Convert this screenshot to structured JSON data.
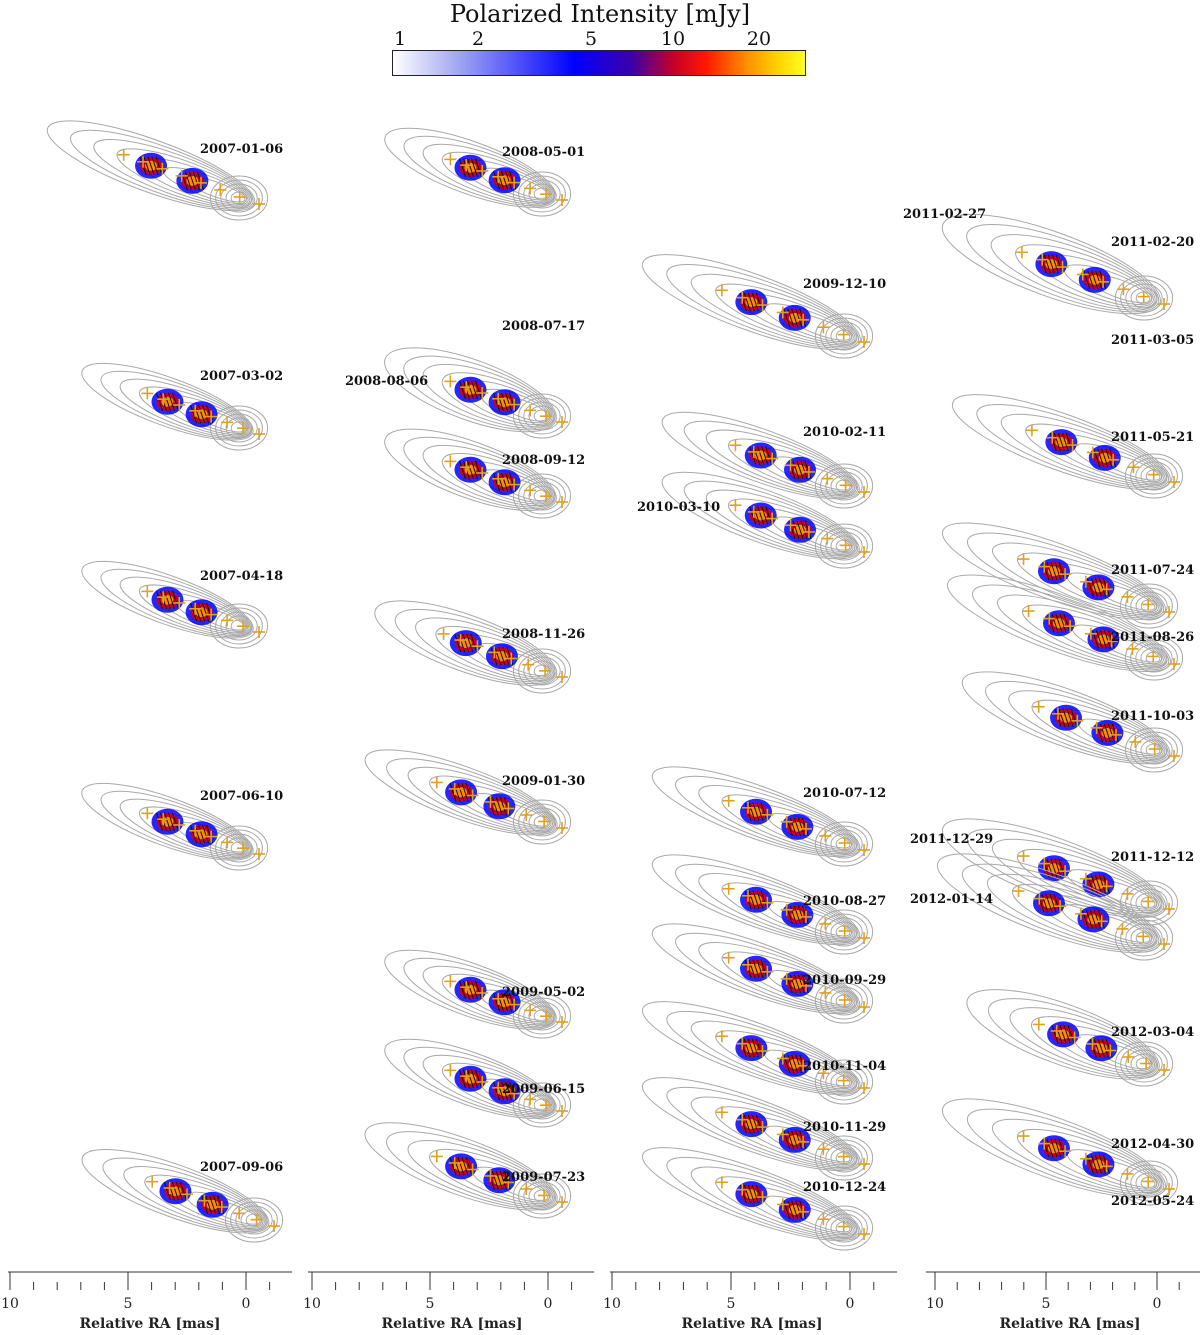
{
  "colorbar": {
    "title": "Polarized Intensity [mJy]",
    "ticks": [
      "1",
      "2",
      "5",
      "10",
      "20"
    ],
    "colors": [
      "#ffffff",
      "#0000ff",
      "#c4002a",
      "#ff8c00",
      "#ffff20"
    ]
  },
  "columns": [
    {
      "epochs": [
        "2007-01-06",
        "2007-03-02",
        "2007-04-18",
        "2007-06-10",
        "2007-09-06"
      ],
      "axis_label": "Relative RA [mas]",
      "tick_labels": [
        "10",
        "5",
        "0"
      ]
    },
    {
      "epochs": [
        "2008-05-01",
        "2008-07-17",
        "2008-08-06",
        "2008-09-12",
        "2008-11-26",
        "2009-01-30",
        "2009-05-02",
        "2009-06-15",
        "2009-07-23"
      ],
      "axis_label": "Relative RA [mas]",
      "tick_labels": [
        "10",
        "5",
        "0"
      ]
    },
    {
      "epochs": [
        "2009-12-10",
        "2010-02-11",
        "2010-03-10",
        "2010-07-12",
        "2010-08-27",
        "2010-09-29",
        "2010-11-04",
        "2010-11-29",
        "2010-12-24"
      ],
      "axis_label": "Relative RA [mas]",
      "tick_labels": [
        "10",
        "5",
        "0"
      ]
    },
    {
      "epochs": [
        "2011-02-27",
        "2011-02-20",
        "2011-03-05",
        "2011-05-21",
        "2011-07-24",
        "2011-08-26",
        "2011-10-03",
        "2011-12-29",
        "2011-12-12",
        "2012-01-14",
        "2012-03-04",
        "2012-04-30",
        "2012-05-24"
      ],
      "axis_label": "Relative RA [mas]",
      "tick_labels": [
        "10",
        "5",
        "0"
      ]
    }
  ],
  "style": {
    "contour_color": "#a9a9a9",
    "marker_color": "#e0a020",
    "evpa_color": "#111111"
  }
}
